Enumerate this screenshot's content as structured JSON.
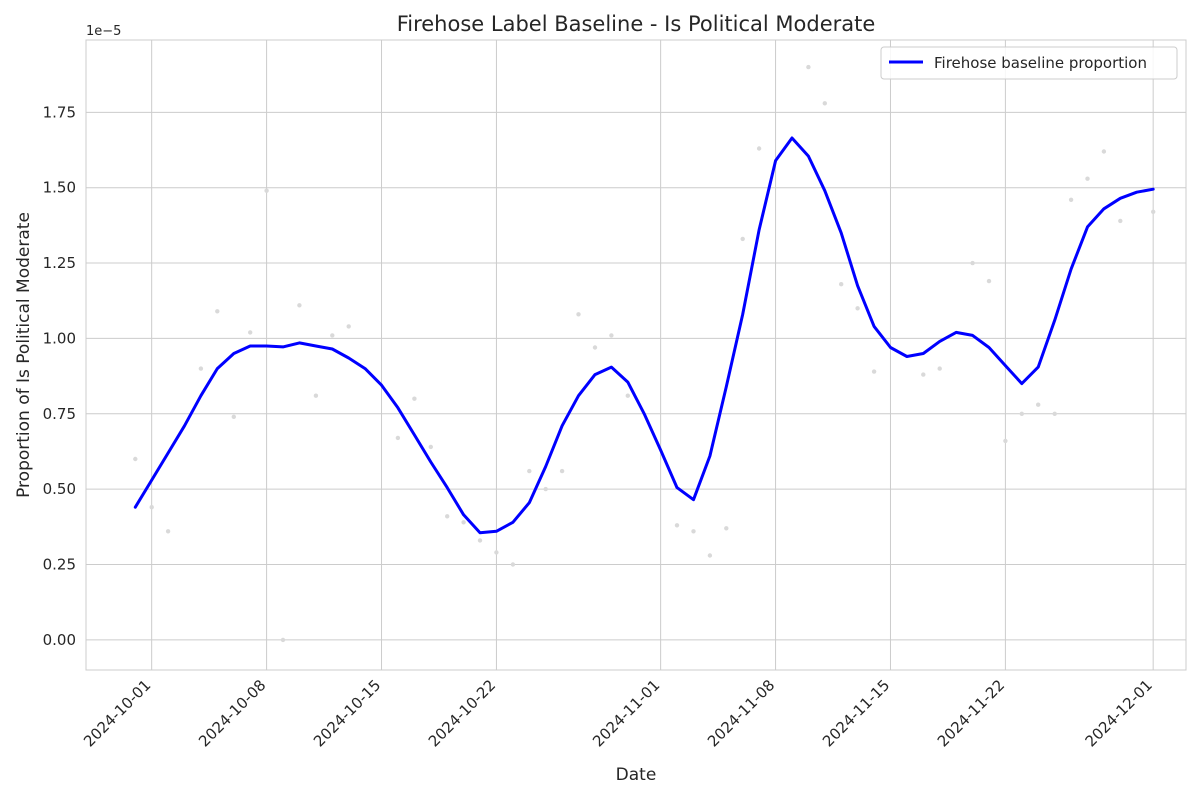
{
  "chart_data": {
    "type": "line",
    "title": "Firehose Label Baseline - Is Political Moderate",
    "xlabel": "Date",
    "ylabel": "Proportion of Is Political Moderate",
    "y_offset_label": "1e−5",
    "xlim": [
      "2024-09-27",
      "2024-12-03"
    ],
    "ylim": [
      -0.1,
      1.99
    ],
    "grid": true,
    "legend_position": "top-right",
    "x_ticks": [
      "2024-10-01",
      "2024-10-08",
      "2024-10-15",
      "2024-10-22",
      "2024-11-01",
      "2024-11-08",
      "2024-11-15",
      "2024-11-22",
      "2024-12-01"
    ],
    "y_ticks": [
      "0.00",
      "0.25",
      "0.50",
      "0.75",
      "1.00",
      "1.25",
      "1.50",
      "1.75"
    ],
    "series": [
      {
        "name": "Firehose baseline proportion",
        "color": "#0000ff",
        "x": [
          "2024-09-30",
          "2024-10-01",
          "2024-10-02",
          "2024-10-03",
          "2024-10-04",
          "2024-10-05",
          "2024-10-06",
          "2024-10-07",
          "2024-10-08",
          "2024-10-09",
          "2024-10-10",
          "2024-10-11",
          "2024-10-12",
          "2024-10-13",
          "2024-10-14",
          "2024-10-15",
          "2024-10-16",
          "2024-10-17",
          "2024-10-18",
          "2024-10-19",
          "2024-10-20",
          "2024-10-21",
          "2024-10-22",
          "2024-10-23",
          "2024-10-24",
          "2024-10-25",
          "2024-10-26",
          "2024-10-27",
          "2024-10-28",
          "2024-10-29",
          "2024-10-30",
          "2024-10-31",
          "2024-11-01",
          "2024-11-02",
          "2024-11-03",
          "2024-11-04",
          "2024-11-05",
          "2024-11-06",
          "2024-11-07",
          "2024-11-08",
          "2024-11-09",
          "2024-11-10",
          "2024-11-11",
          "2024-11-12",
          "2024-11-13",
          "2024-11-14",
          "2024-11-15",
          "2024-11-16",
          "2024-11-17",
          "2024-11-18",
          "2024-11-19",
          "2024-11-20",
          "2024-11-21",
          "2024-11-22",
          "2024-11-23",
          "2024-11-24",
          "2024-11-25",
          "2024-11-26",
          "2024-11-27",
          "2024-11-28",
          "2024-11-29",
          "2024-11-30",
          "2024-12-01"
        ],
        "values": [
          0.44,
          0.53,
          0.62,
          0.71,
          0.81,
          0.9,
          0.95,
          0.975,
          0.975,
          0.972,
          0.985,
          0.975,
          0.965,
          0.935,
          0.9,
          0.845,
          0.77,
          0.68,
          0.59,
          0.505,
          0.415,
          0.355,
          0.36,
          0.39,
          0.455,
          0.575,
          0.71,
          0.81,
          0.88,
          0.905,
          0.855,
          0.75,
          0.63,
          0.505,
          0.465,
          0.61,
          0.84,
          1.08,
          1.36,
          1.59,
          1.665,
          1.605,
          1.49,
          1.35,
          1.175,
          1.04,
          0.97,
          0.94,
          0.95,
          0.99,
          1.02,
          1.01,
          0.97,
          0.91,
          0.85,
          0.905,
          1.06,
          1.23,
          1.37,
          1.43,
          1.465,
          1.485,
          1.495
        ]
      },
      {
        "name": "",
        "color": "#d9d9d9",
        "x": [
          "2024-09-30",
          "2024-10-01",
          "2024-10-02",
          "2024-10-04",
          "2024-10-05",
          "2024-10-06",
          "2024-10-07",
          "2024-10-08",
          "2024-10-09",
          "2024-10-10",
          "2024-10-11",
          "2024-10-12",
          "2024-10-13",
          "2024-10-16",
          "2024-10-17",
          "2024-10-18",
          "2024-10-19",
          "2024-10-20",
          "2024-10-21",
          "2024-10-22",
          "2024-10-23",
          "2024-10-24",
          "2024-10-25",
          "2024-10-26",
          "2024-10-27",
          "2024-10-28",
          "2024-10-29",
          "2024-10-30",
          "2024-11-02",
          "2024-11-03",
          "2024-11-04",
          "2024-11-05",
          "2024-11-06",
          "2024-11-07",
          "2024-11-10",
          "2024-11-11",
          "2024-11-12",
          "2024-11-13",
          "2024-11-14",
          "2024-11-17",
          "2024-11-18",
          "2024-11-20",
          "2024-11-21",
          "2024-11-22",
          "2024-11-23",
          "2024-11-24",
          "2024-11-25",
          "2024-11-26",
          "2024-11-27",
          "2024-11-28",
          "2024-11-29",
          "2024-12-01"
        ],
        "values": [
          0.6,
          0.44,
          0.36,
          0.9,
          1.09,
          0.74,
          1.02,
          1.49,
          0.0,
          1.11,
          0.81,
          1.01,
          1.04,
          0.67,
          0.8,
          0.64,
          0.41,
          0.39,
          0.33,
          0.29,
          0.25,
          0.56,
          0.5,
          0.56,
          1.08,
          0.97,
          1.01,
          0.81,
          0.38,
          0.36,
          0.28,
          0.37,
          1.33,
          1.63,
          1.9,
          1.78,
          1.18,
          1.1,
          0.89,
          0.88,
          0.9,
          1.25,
          1.19,
          0.66,
          0.75,
          0.78,
          0.75,
          1.46,
          1.53,
          1.62,
          1.39,
          1.42
        ]
      }
    ]
  }
}
